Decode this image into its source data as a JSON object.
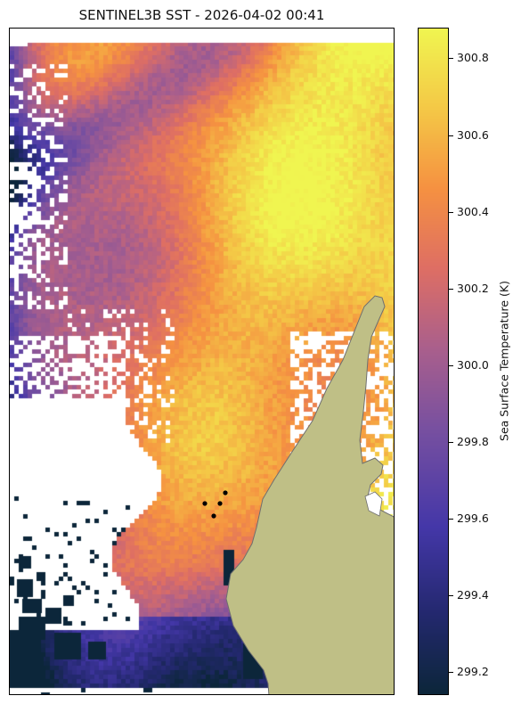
{
  "title": "SENTINEL3B SST - 2026-04-02 00:41",
  "colorbar": {
    "label": "Sea Surface Temperature (K)",
    "min": 299.14,
    "max": 300.88,
    "colormap": "plasma-like (dark navy to yellow)",
    "ticks": [
      "299.2",
      "299.4",
      "299.6",
      "299.8",
      "300.0",
      "300.2",
      "300.4",
      "300.6",
      "300.8"
    ]
  },
  "colors": {
    "land": "#bfbf86",
    "land_edge": "#6f6f6f",
    "missing_data": "#ffffff",
    "buoy_points": "#000000"
  },
  "buoy_points": 4
}
